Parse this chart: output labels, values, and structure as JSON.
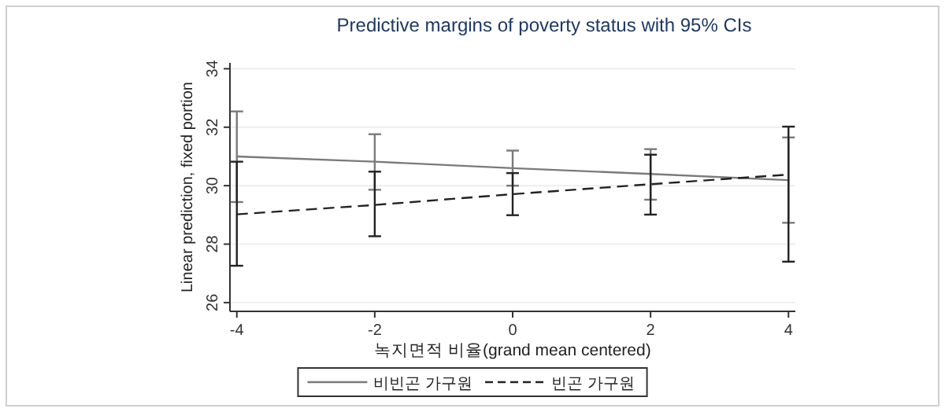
{
  "chart_data": {
    "type": "line",
    "title": "Predictive margins of poverty status with 95% CIs",
    "xlabel": "녹지면적 비율(grand mean centered)",
    "ylabel": "Linear prediction, fixed portion",
    "x": [
      -4,
      -2,
      0,
      2,
      4
    ],
    "series": [
      {
        "name": "비빈곤 가구원",
        "color": "#7a7a7a",
        "line_style": "solid",
        "values": [
          31.0,
          30.82,
          30.6,
          30.4,
          30.19
        ],
        "errors": [
          [
            29.44,
            32.54
          ],
          [
            29.86,
            31.76
          ],
          [
            30.0,
            31.2
          ],
          [
            29.52,
            31.25
          ],
          [
            28.73,
            31.65
          ]
        ]
      },
      {
        "name": "빈곤 가구원",
        "color": "#222222",
        "line_style": "dashed",
        "values": [
          29.02,
          29.34,
          29.71,
          30.05,
          30.38
        ],
        "errors": [
          [
            27.26,
            30.82
          ],
          [
            28.27,
            30.48
          ],
          [
            28.99,
            30.43
          ],
          [
            29.01,
            31.06
          ],
          [
            27.4,
            32.02
          ]
        ]
      }
    ],
    "xlim": [
      -4.1,
      4.1
    ],
    "ylim": [
      25.7,
      34.2
    ],
    "xticks": [
      -4,
      -2,
      0,
      2,
      4
    ],
    "yticks": [
      26,
      28,
      30,
      32,
      34
    ],
    "grid": "y",
    "legend": "bottom",
    "marker": "none"
  }
}
